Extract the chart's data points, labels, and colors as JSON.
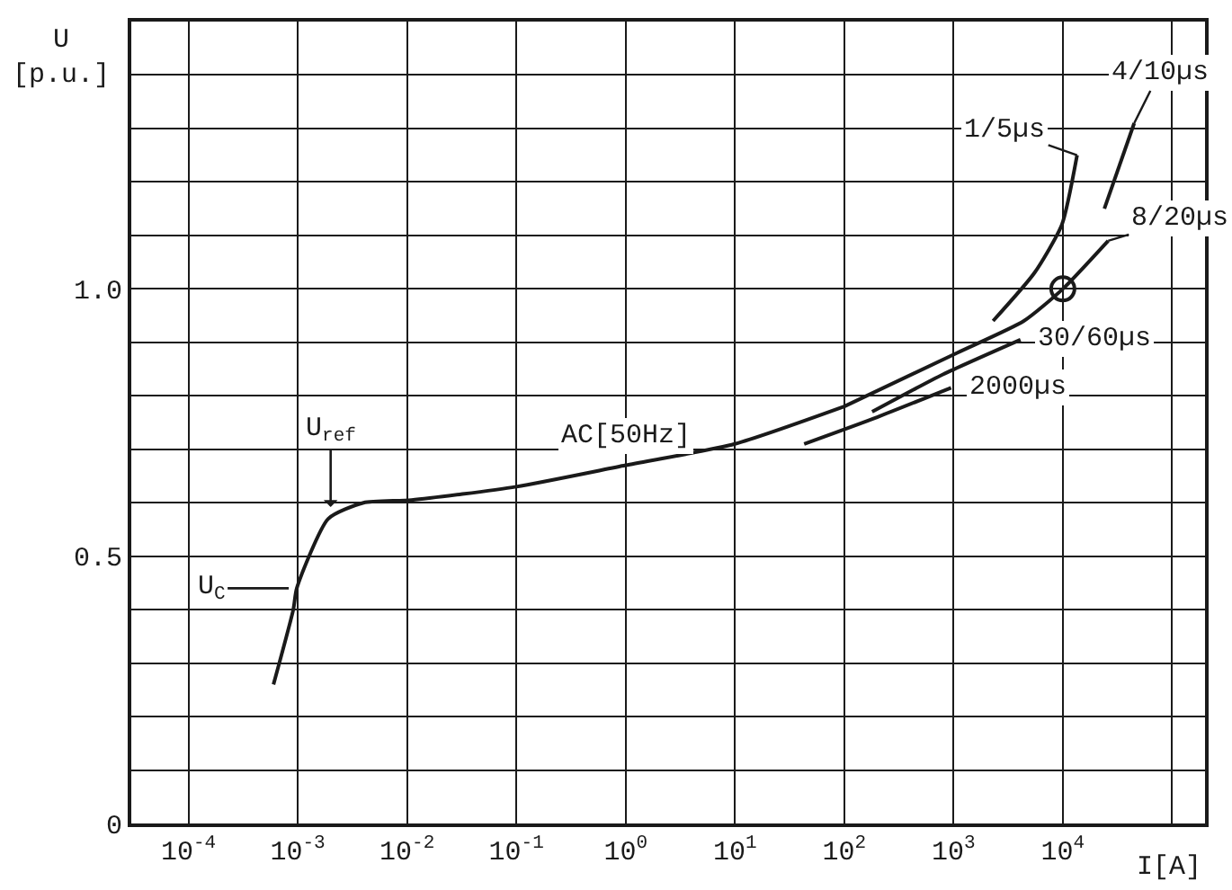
{
  "chart_data": {
    "type": "line",
    "xlabel": "I[A]",
    "ylabel": "U\n[p.u.]",
    "log": "x",
    "xlim": [
      3e-05,
      200000
    ],
    "xticks": [
      {
        "value": 0.0001,
        "label": "10$^{-4}$"
      },
      {
        "value": 0.001,
        "label": "10$^{-3}$"
      },
      {
        "value": 0.01,
        "label": "10$^{-2}$"
      },
      {
        "value": 0.1,
        "label": "10$^{-1}$"
      },
      {
        "value": 1,
        "label": "10$^{0}$"
      },
      {
        "value": 10,
        "label": "10$^{1}$"
      },
      {
        "value": 100,
        "label": "10$^{2}$"
      },
      {
        "value": 1000,
        "label": "10$^{3}$"
      },
      {
        "value": 10000,
        "label": "10$^{4}$"
      },
      {
        "value": 100000,
        "label": null
      }
    ],
    "ylim": [
      0,
      1.5
    ],
    "yticks": [
      0,
      {
        "value": 0.1,
        "label": null
      },
      {
        "value": 0.2,
        "label": null
      },
      {
        "value": 0.3,
        "label": null
      },
      {
        "value": 0.4,
        "label": null
      },
      0.5,
      {
        "value": 0.6,
        "label": null
      },
      {
        "value": 0.7,
        "label": null
      },
      {
        "value": 0.8,
        "label": null
      },
      {
        "value": 0.9,
        "label": null
      },
      {
        "value": 1,
        "label": "1.0"
      },
      {
        "value": 1.1,
        "label": null
      },
      {
        "value": 1.2,
        "label": null
      },
      {
        "value": 1.3,
        "label": null
      },
      {
        "value": 1.4,
        "label": null
      }
    ],
    "grid": true,
    "legend": false,
    "marker": "none",
    "line_style": "solid",
    "series": [
      {
        "name": "AC[50Hz]",
        "color": "#1a1a1a",
        "x": [
          0.0006,
          0.00091,
          0.00098,
          0.0019,
          0.004,
          0.011,
          0.1,
          1,
          10,
          100
        ],
        "values": [
          0.26,
          0.4,
          0.44,
          0.57,
          0.6,
          0.605,
          0.63,
          0.67,
          0.71,
          0.78
        ]
      },
      {
        "name": "1/5µs",
        "color": "#1a1a1a",
        "x": [
          2300,
          5500,
          9800,
          13500
        ],
        "values": [
          0.94,
          1.03,
          1.12,
          1.25
        ]
      },
      {
        "name": "4/10µs",
        "color": "#1a1a1a",
        "x": [
          24000,
          45000
        ],
        "values": [
          1.15,
          1.31
        ]
      },
      {
        "name": "8/20µs",
        "color": "#1a1a1a",
        "x": [
          100,
          1070,
          4400,
          10000,
          26000
        ],
        "values": [
          0.78,
          0.88,
          0.94,
          1.0,
          1.09
        ]
      },
      {
        "name": "30/60µs",
        "color": "#1a1a1a",
        "x": [
          180,
          800,
          4100
        ],
        "values": [
          0.77,
          0.84,
          0.905
        ]
      },
      {
        "name": "2000µs",
        "color": "#1a1a1a",
        "x": [
          43,
          200,
          950
        ],
        "values": [
          0.71,
          0.76,
          0.815
        ]
      },
      {
        "type": "scatter",
        "color": "#1a1a1a",
        "marker": "circle",
        "x": [
          10000
        ],
        "values": [
          1.0
        ]
      }
    ],
    "annotations": [
      {
        "text": "U$_{ref}$",
        "x": 0.002,
        "y": 0.585
      },
      {
        "text": "U$_{C}$",
        "x": 0.001,
        "y": 0.44
      }
    ]
  }
}
